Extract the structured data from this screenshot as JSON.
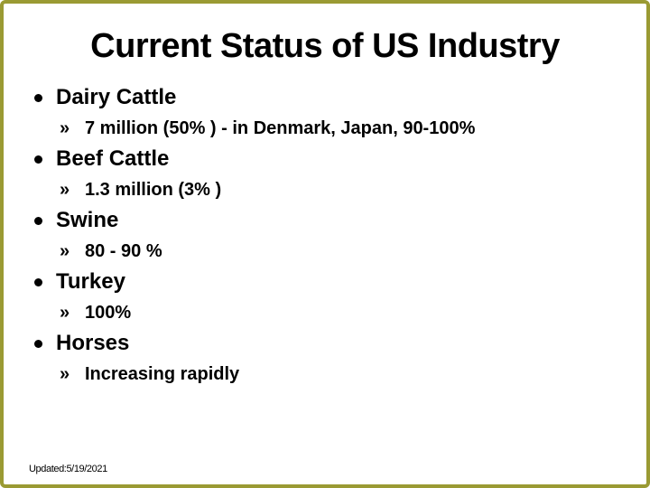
{
  "slide": {
    "title": "Current Status of US Industry",
    "bullet_glyphs": {
      "level1_icon": "filled-circle",
      "level2": "»"
    },
    "items": [
      {
        "label": "Dairy Cattle",
        "detail": "7 million (50% ) - in Denmark, Japan, 90-100%"
      },
      {
        "label": "Beef Cattle",
        "detail": "1.3 million (3% )"
      },
      {
        "label": "Swine",
        "detail": "80 - 90 %"
      },
      {
        "label": "Turkey",
        "detail": "100%"
      },
      {
        "label": "Horses",
        "detail": "Increasing rapidly"
      }
    ],
    "footer": "Updated:5/19/2021",
    "colors": {
      "background": "#ffffff",
      "text": "#000000",
      "border": "#9a9a33"
    }
  }
}
